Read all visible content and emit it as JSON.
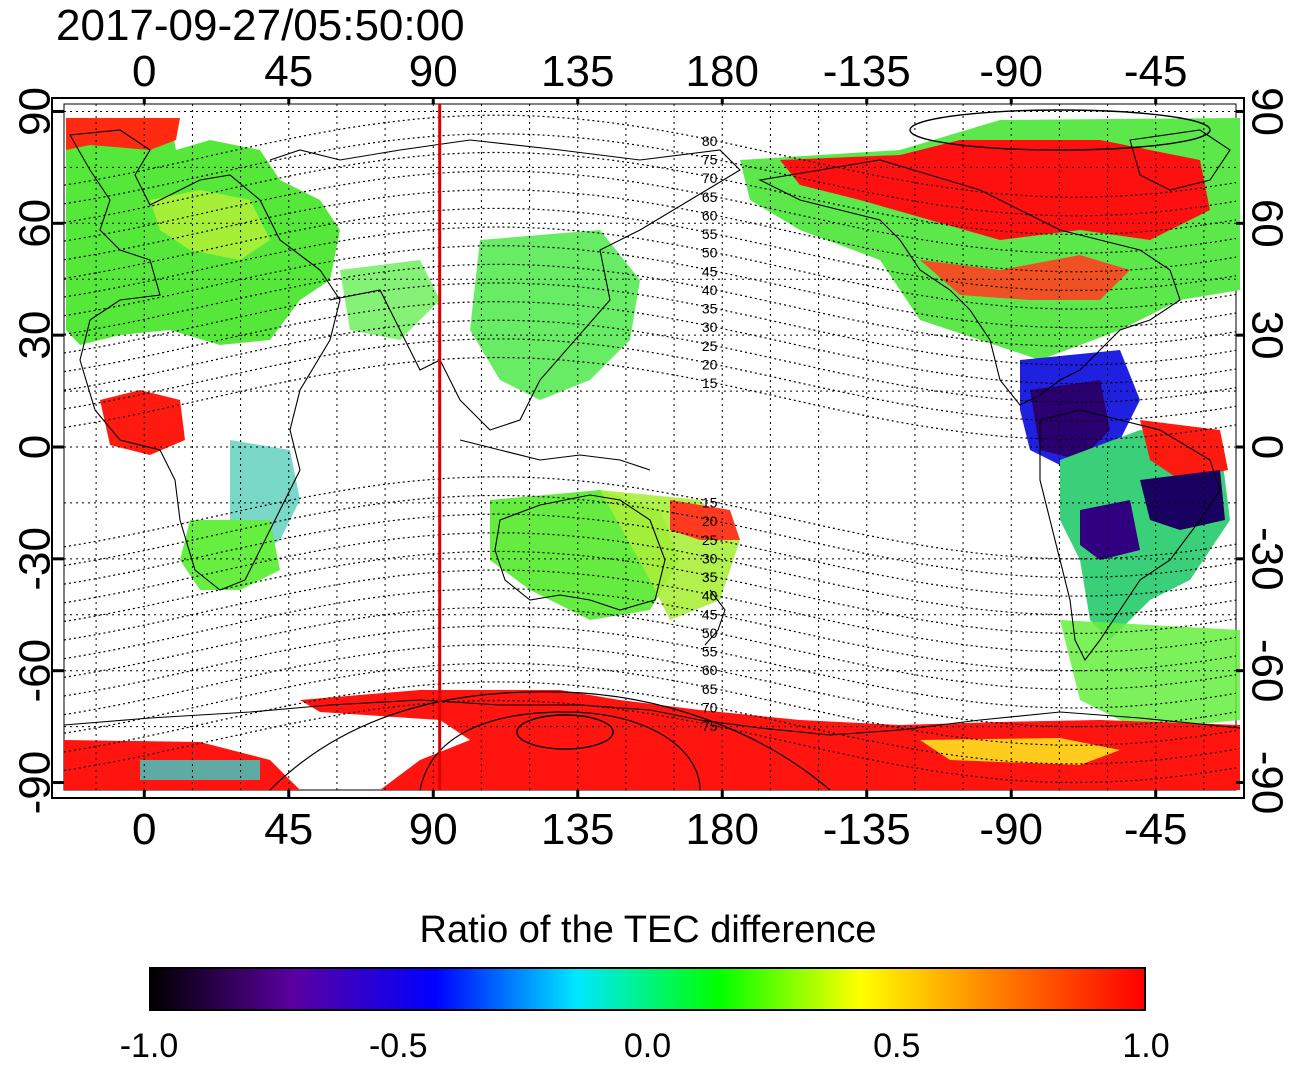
{
  "timestamp": "2017-09-27/05:50:00",
  "map": {
    "projection": "cylindrical",
    "lon_range": [
      -25,
      340
    ],
    "lat_range": [
      -92,
      92
    ],
    "lon_ticks": [
      0,
      45,
      90,
      135,
      180,
      225,
      270,
      315
    ],
    "lon_tick_labels": [
      "0",
      "45",
      "90",
      "135",
      "180",
      "-135",
      "-90",
      "-45"
    ],
    "lat_ticks": [
      90,
      60,
      30,
      0,
      -30,
      -60,
      -90
    ],
    "lat_tick_labels": [
      "90",
      "60",
      "30",
      "0",
      "-30",
      "-60",
      "-90"
    ],
    "marker_longitude": 92,
    "marker_color": "#dd0000",
    "grid": true,
    "magnetic_latitude_labels": [
      "80",
      "75",
      "70",
      "65",
      "60",
      "55",
      "50",
      "45",
      "40",
      "35",
      "30",
      "25",
      "20",
      "15",
      "15",
      "20",
      "25",
      "30",
      "35",
      "40",
      "45",
      "50",
      "55",
      "60",
      "65",
      "70",
      "75"
    ]
  },
  "colorbar": {
    "title": "Ratio of the TEC difference",
    "min": -1.0,
    "max": 1.0,
    "tick_values": [
      -1.0,
      -0.5,
      0.0,
      0.5,
      1.0
    ],
    "tick_labels": [
      "-1.0",
      "-0.5",
      "0.0",
      "0.5",
      "1.0"
    ],
    "colors": [
      "#000000",
      "#5a00a0",
      "#0000ff",
      "#00e8ff",
      "#00ff00",
      "#ffff00",
      "#ff7a00",
      "#ff0000"
    ]
  }
}
